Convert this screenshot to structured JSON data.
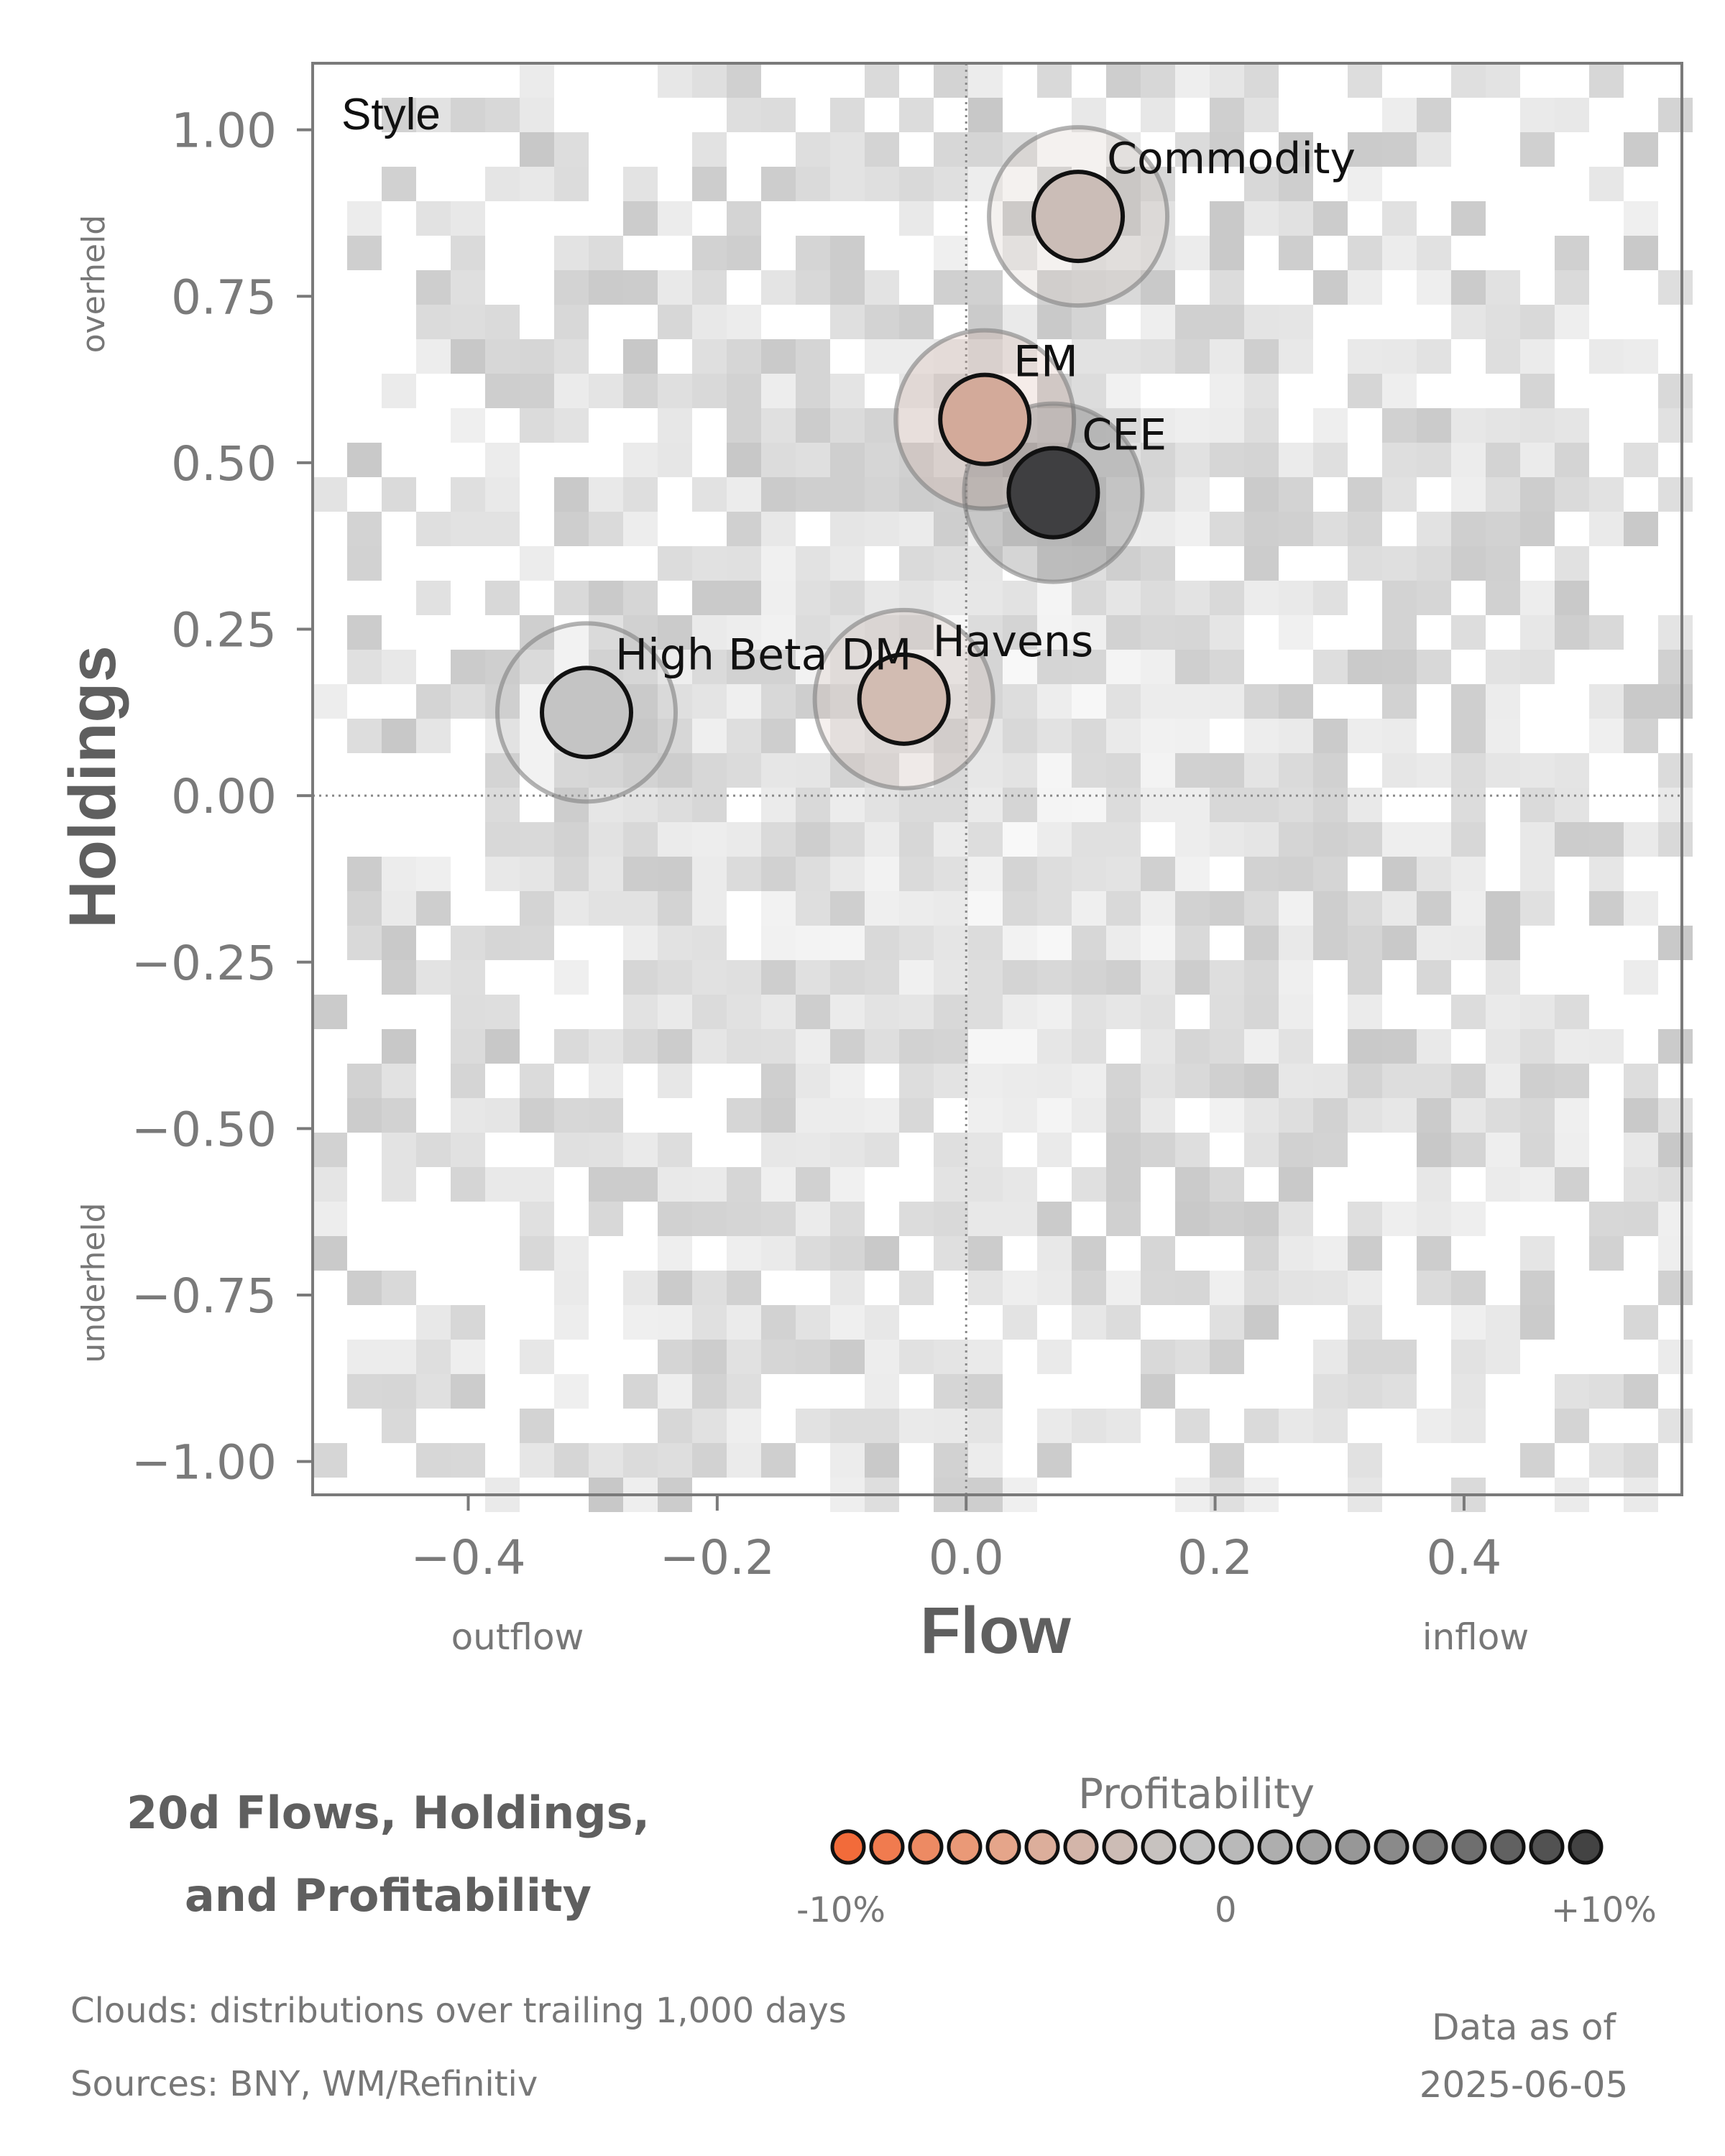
{
  "chart_data": {
    "type": "scatter",
    "panel_label": "Style",
    "xlabel": "Flow",
    "ylabel": "Holdings",
    "x_direction_labels": {
      "left": "outflow",
      "right": "inflow"
    },
    "y_direction_labels": {
      "top": "overheld",
      "bottom": "underheld"
    },
    "xlim": [
      -0.525,
      0.575
    ],
    "ylim": [
      -1.05,
      1.1
    ],
    "xticks": [
      {
        "value": -0.4,
        "label": "−0.4"
      },
      {
        "value": -0.2,
        "label": "−0.2"
      },
      {
        "value": 0.0,
        "label": "0.0"
      },
      {
        "value": 0.2,
        "label": "0.2"
      },
      {
        "value": 0.4,
        "label": "0.4"
      }
    ],
    "yticks": [
      {
        "value": 1.0,
        "label": "1.00"
      },
      {
        "value": 0.75,
        "label": "0.75"
      },
      {
        "value": 0.5,
        "label": "0.50"
      },
      {
        "value": 0.25,
        "label": "0.25"
      },
      {
        "value": 0.0,
        "label": "0.00"
      },
      {
        "value": -0.25,
        "label": "−0.25"
      },
      {
        "value": -0.5,
        "label": "−0.50"
      },
      {
        "value": -0.75,
        "label": "−0.75"
      },
      {
        "value": -1.0,
        "label": "−1.00"
      }
    ],
    "grid": false,
    "reference_lines": {
      "x": 0.0,
      "y": 0.0,
      "style": "dotted"
    },
    "points": [
      {
        "name": "Commodity",
        "x": 0.09,
        "y": 0.87,
        "profitability": 0.0,
        "color": "#cbbdb7"
      },
      {
        "name": "EM",
        "x": 0.015,
        "y": 0.565,
        "profitability": -3.0,
        "color": "#d3aa9a"
      },
      {
        "name": "CEE",
        "x": 0.07,
        "y": 0.455,
        "profitability": 10.0,
        "color": "#3f3f41"
      },
      {
        "name": "High Beta DM",
        "x": -0.305,
        "y": 0.125,
        "profitability": 3.0,
        "color": "#c4c4c4"
      },
      {
        "name": "Havens",
        "x": -0.05,
        "y": 0.145,
        "profitability": -1.0,
        "color": "#d2bcb2"
      }
    ]
  },
  "legend": {
    "title_line1": "20d Flows, Holdings,",
    "title_line2": "and Profitability",
    "profitability_label": "Profitability",
    "scale_min_label": "-10%",
    "scale_mid_label": "0",
    "scale_max_label": "+10%",
    "swatch_colors": [
      "#f26b3a",
      "#f07b4f",
      "#ed8a63",
      "#ea9977",
      "#e5a58a",
      "#dcae9b",
      "#d3b5a9",
      "#ccbcb5",
      "#c7c2bf",
      "#c3c3c3",
      "#b9b9b9",
      "#aeaeae",
      "#a3a3a3",
      "#979797",
      "#8a8a8a",
      "#7d7d7d",
      "#6f6f6f",
      "#616161",
      "#525252",
      "#434343"
    ]
  },
  "footer": {
    "clouds_note": "Clouds:  distributions over trailing 1,000 days",
    "sources_note": "Sources:  BNY, WM/Refinitiv",
    "as_of_label": "Data as of",
    "as_of_date": "2025-06-05"
  },
  "colors": {
    "axis": "#7a7a7a",
    "text_dark": "#5f5f5f",
    "heatmap_base": "#c9c9c9",
    "positive": "#434343",
    "negative": "#f26b3a"
  }
}
